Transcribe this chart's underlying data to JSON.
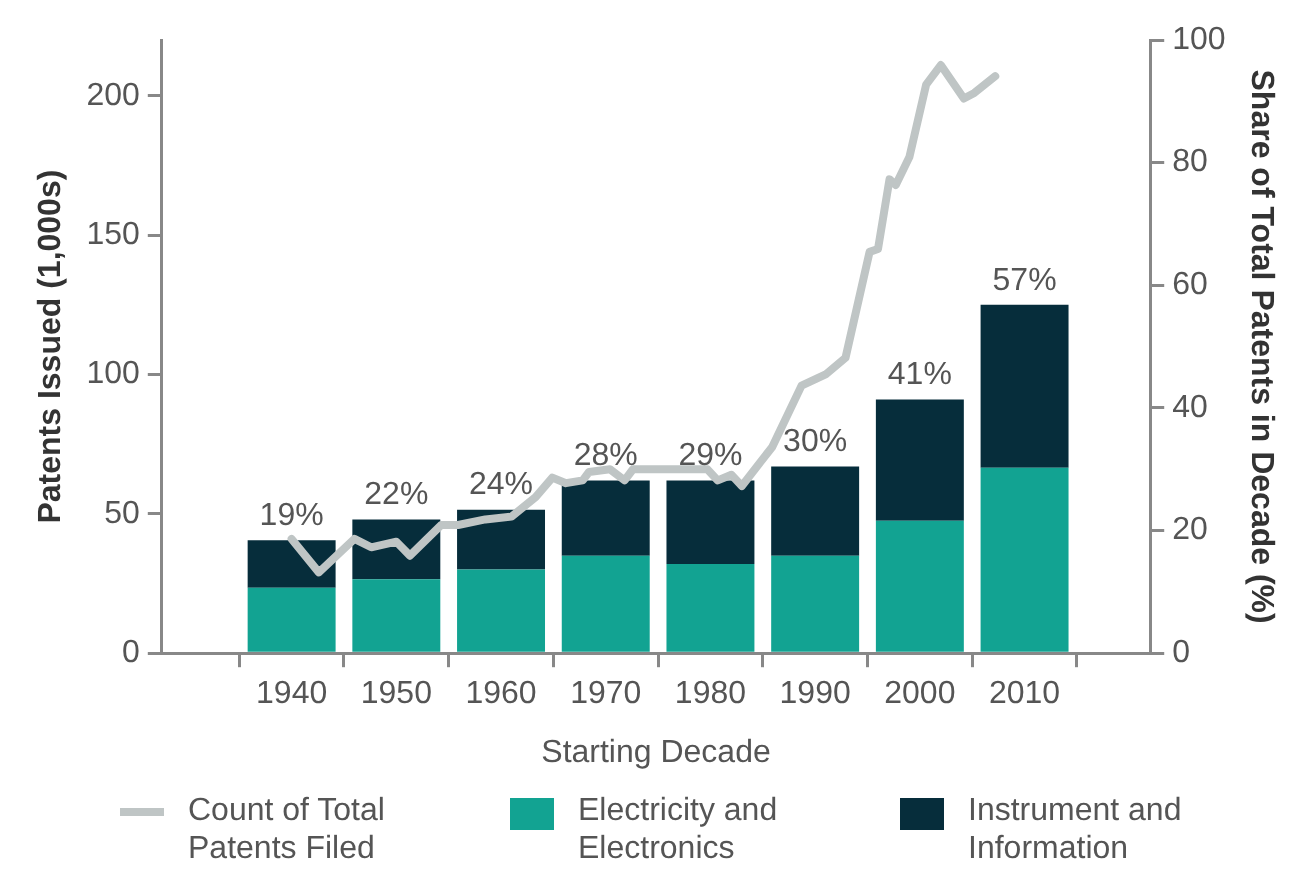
{
  "chart_data": {
    "type": "bar",
    "stacked": true,
    "xlabel": "Starting Decade",
    "ylabel": "Patents Issued (1,000s)",
    "y2label": "Share of Total Patents in Decade (%)",
    "x": [
      1940,
      1950,
      1960,
      1970,
      1980,
      1990,
      2000,
      2010
    ],
    "xlim": [
      1927.6,
      2022
    ],
    "xticks": [
      1940,
      1950,
      1960,
      1970,
      1980,
      1990,
      2000,
      2010
    ],
    "ylim": [
      0,
      220
    ],
    "yticks": [
      0,
      50,
      100,
      150,
      200
    ],
    "y2lim": [
      0,
      100
    ],
    "y2ticks": [
      0,
      20,
      40,
      60,
      80,
      100
    ],
    "series": [
      {
        "name": "Count of Total Patents Filed",
        "type": "line",
        "color": "#bfc5c5",
        "x": [
          1940,
          1942.6,
          1946,
          1947.6,
          1950,
          1951.3,
          1954.3,
          1955.9,
          1958.5,
          1961,
          1963.3,
          1964.9,
          1966.2,
          1967.8,
          1968.4,
          1970.4,
          1971.8,
          1972.6,
          1979.7,
          1980.7,
          1982,
          1983,
          1985.9,
          1988.7,
          1991,
          1992.9,
          1995.2,
          1996,
          1997.1,
          1997.7,
          1999,
          2000.6,
          2002,
          2004.2,
          2005.2,
          2007.2
        ],
        "values": [
          41,
          29,
          41,
          38,
          40,
          35,
          46,
          46,
          48,
          49,
          56,
          63,
          61,
          62,
          65,
          66,
          62,
          66,
          66,
          62,
          64,
          60,
          74,
          96,
          100,
          106,
          144,
          145,
          170,
          168,
          178,
          204,
          211,
          199,
          201,
          207
        ]
      },
      {
        "name": "Electricity and Electronics",
        "color": "#12a392",
        "values": [
          23.5,
          26.5,
          30,
          35,
          32,
          35,
          47.5,
          66.5
        ]
      },
      {
        "name": "Instrument and Information",
        "color": "#062d3b",
        "values": [
          17,
          21.5,
          21.5,
          27,
          30,
          32,
          43.5,
          58.5
        ]
      }
    ],
    "annotations": [
      {
        "text": "19%",
        "x": 1940,
        "y": 40.5
      },
      {
        "text": "22%",
        "x": 1950,
        "y": 48
      },
      {
        "text": "24%",
        "x": 1960,
        "y": 51.5
      },
      {
        "text": "28%",
        "x": 1970,
        "y": 62
      },
      {
        "text": "29%",
        "x": 1980,
        "y": 62
      },
      {
        "text": "30%",
        "x": 1990,
        "y": 67
      },
      {
        "text": "41%",
        "x": 2000,
        "y": 91
      },
      {
        "text": "57%",
        "x": 2010,
        "y": 125
      }
    ],
    "grid": false,
    "legend": "bottom",
    "marker": "none",
    "line_style": "solid"
  }
}
